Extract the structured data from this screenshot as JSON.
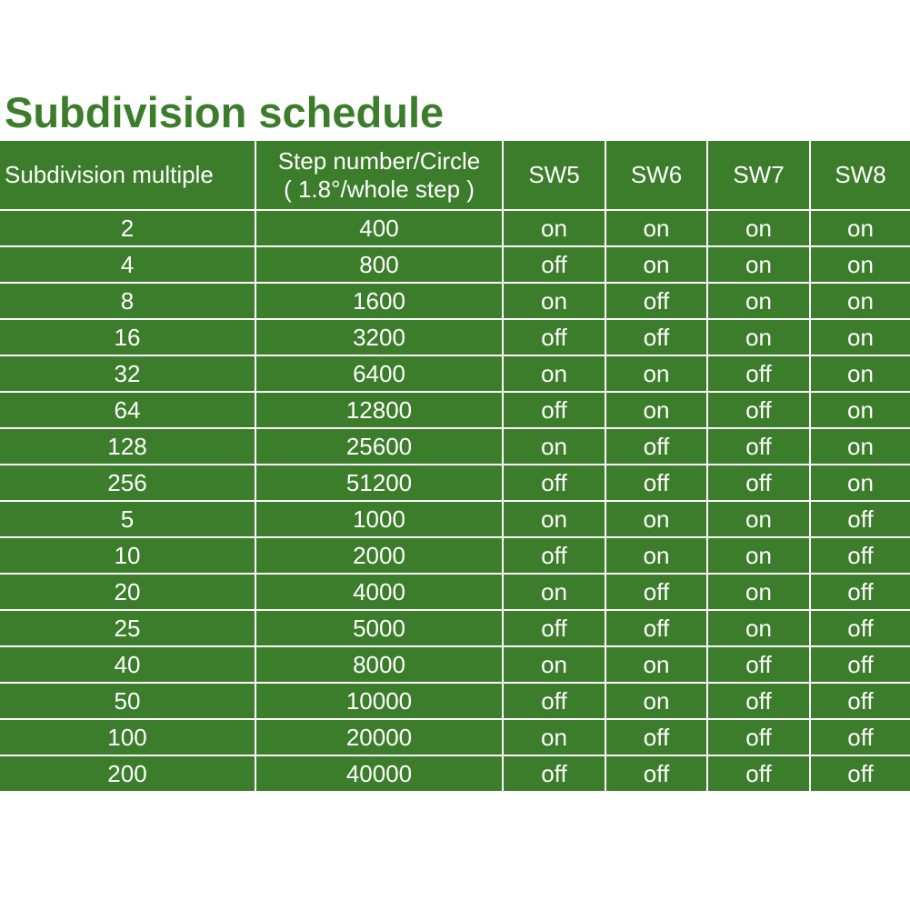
{
  "title": "Subdivision schedule",
  "table": {
    "headers": {
      "multiple": "Subdivision multiple",
      "steps_line1": "Step number/Circle",
      "steps_line2": "( 1.8°/whole step )",
      "sw5": "SW5",
      "sw6": "SW6",
      "sw7": "SW7",
      "sw8": "SW8"
    },
    "rows": [
      [
        "2",
        "400",
        "on",
        "on",
        "on",
        "on"
      ],
      [
        "4",
        "800",
        "off",
        "on",
        "on",
        "on"
      ],
      [
        "8",
        "1600",
        "on",
        "off",
        "on",
        "on"
      ],
      [
        "16",
        "3200",
        "off",
        "off",
        "on",
        "on"
      ],
      [
        "32",
        "6400",
        "on",
        "on",
        "off",
        "on"
      ],
      [
        "64",
        "12800",
        "off",
        "on",
        "off",
        "on"
      ],
      [
        "128",
        "25600",
        "on",
        "off",
        "off",
        "on"
      ],
      [
        "256",
        "51200",
        "off",
        "off",
        "off",
        "on"
      ],
      [
        "5",
        "1000",
        "on",
        "on",
        "on",
        "off"
      ],
      [
        "10",
        "2000",
        "off",
        "on",
        "on",
        "off"
      ],
      [
        "20",
        "4000",
        "on",
        "off",
        "on",
        "off"
      ],
      [
        "25",
        "5000",
        "off",
        "off",
        "on",
        "off"
      ],
      [
        "40",
        "8000",
        "on",
        "on",
        "off",
        "off"
      ],
      [
        "50",
        "10000",
        "off",
        "on",
        "off",
        "off"
      ],
      [
        "100",
        "20000",
        "on",
        "off",
        "off",
        "off"
      ],
      [
        "200",
        "40000",
        "off",
        "off",
        "off",
        "off"
      ]
    ]
  },
  "colors": {
    "accent": "#3b7d2a",
    "cell_text": "#ffffff",
    "grid_line": "#ffffff"
  }
}
